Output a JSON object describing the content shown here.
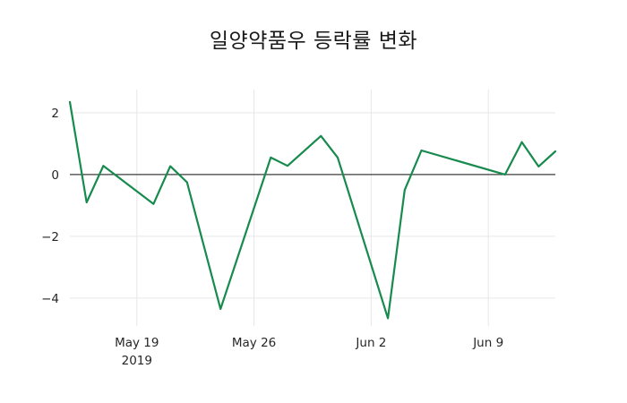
{
  "chart_data": {
    "type": "line",
    "title": "일양약품우 등락률 변화",
    "xlabel": "",
    "ylabel": "",
    "legend": false,
    "grid": true,
    "background_color": "#ffffff",
    "line_color": "#178a4e",
    "grid_color": "#e7e7e7",
    "zero_line_color": "#3d3d3d",
    "tick_text_color": "#262626",
    "title_color": "#1a1a1a",
    "line_width": 2.2,
    "x_unit": "days since 2019-05-15",
    "xlim_days": [
      0,
      29
    ],
    "ylim": [
      -4.9,
      2.75
    ],
    "points": [
      {
        "date": "May 15",
        "offset": 0,
        "value": 2.35
      },
      {
        "date": "May 16",
        "offset": 1,
        "value": -0.9
      },
      {
        "date": "May 17",
        "offset": 2,
        "value": 0.28
      },
      {
        "date": "May 20",
        "offset": 5,
        "value": -0.95
      },
      {
        "date": "May 21",
        "offset": 6,
        "value": 0.27
      },
      {
        "date": "May 22",
        "offset": 7,
        "value": -0.25
      },
      {
        "date": "May 24",
        "offset": 9,
        "value": -4.35
      },
      {
        "date": "May 27",
        "offset": 12,
        "value": 0.55
      },
      {
        "date": "May 28",
        "offset": 13,
        "value": 0.28
      },
      {
        "date": "May 30",
        "offset": 15,
        "value": 1.25
      },
      {
        "date": "May 31",
        "offset": 16,
        "value": 0.55
      },
      {
        "date": "Jun 3",
        "offset": 19,
        "value": -4.65
      },
      {
        "date": "Jun 4",
        "offset": 20,
        "value": -0.5
      },
      {
        "date": "Jun 5",
        "offset": 21,
        "value": 0.78
      },
      {
        "date": "Jun 10",
        "offset": 26,
        "value": 0.0
      },
      {
        "date": "Jun 11",
        "offset": 27,
        "value": 1.05
      },
      {
        "date": "Jun 12",
        "offset": 28,
        "value": 0.26
      },
      {
        "date": "Jun 13",
        "offset": 29,
        "value": 0.75
      }
    ],
    "x_ticks": [
      {
        "label": "May 19",
        "sublabel": "2019",
        "offset": 4
      },
      {
        "label": "May 26",
        "sublabel": "",
        "offset": 11
      },
      {
        "label": "Jun 2",
        "sublabel": "",
        "offset": 18
      },
      {
        "label": "Jun 9",
        "sublabel": "",
        "offset": 25
      }
    ],
    "y_ticks": [
      {
        "label": "2",
        "value": 2
      },
      {
        "label": "0",
        "value": 0
      },
      {
        "label": "−2",
        "value": -2
      },
      {
        "label": "−4",
        "value": -4
      }
    ]
  }
}
